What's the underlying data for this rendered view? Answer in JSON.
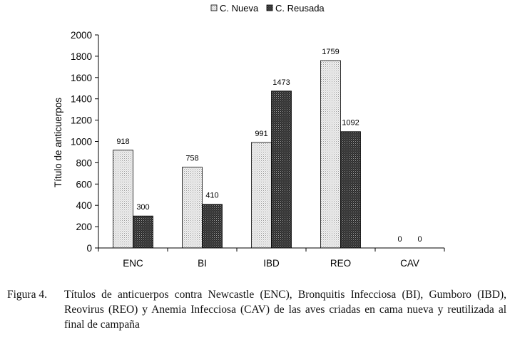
{
  "chart_data": {
    "type": "bar",
    "categories": [
      "ENC",
      "BI",
      "IBD",
      "REO",
      "CAV"
    ],
    "series": [
      {
        "name": "C. Nueva",
        "values": [
          918,
          758,
          991,
          1759,
          0
        ]
      },
      {
        "name": "C. Reusada",
        "values": [
          300,
          410,
          1473,
          1092,
          0
        ]
      }
    ],
    "data_labels": [
      [
        "918",
        "758",
        "991",
        "1759",
        "0"
      ],
      [
        "300",
        "410",
        "1473",
        "1092",
        "0"
      ]
    ],
    "ylabel": "Título de anticuerpos",
    "xlabel": "",
    "ylim": [
      0,
      2000
    ],
    "yticks": [
      0,
      200,
      400,
      600,
      800,
      1000,
      1200,
      1400,
      1600,
      1800,
      2000
    ],
    "grid": false,
    "legend_position": "top-center",
    "colors": {
      "series1_fill": "#e4e4e4",
      "series2_fill": "#555555",
      "axis": "#000000"
    }
  },
  "caption": {
    "label": "Figura 4.",
    "text": "Títulos de anticuerpos contra Newcastle (ENC), Bronquitis Infecciosa (BI), Gumboro (IBD), Reovirus (REO) y Anemia Infecciosa (CAV) de las aves criadas en cama nueva y reutilizada al final de campaña"
  }
}
